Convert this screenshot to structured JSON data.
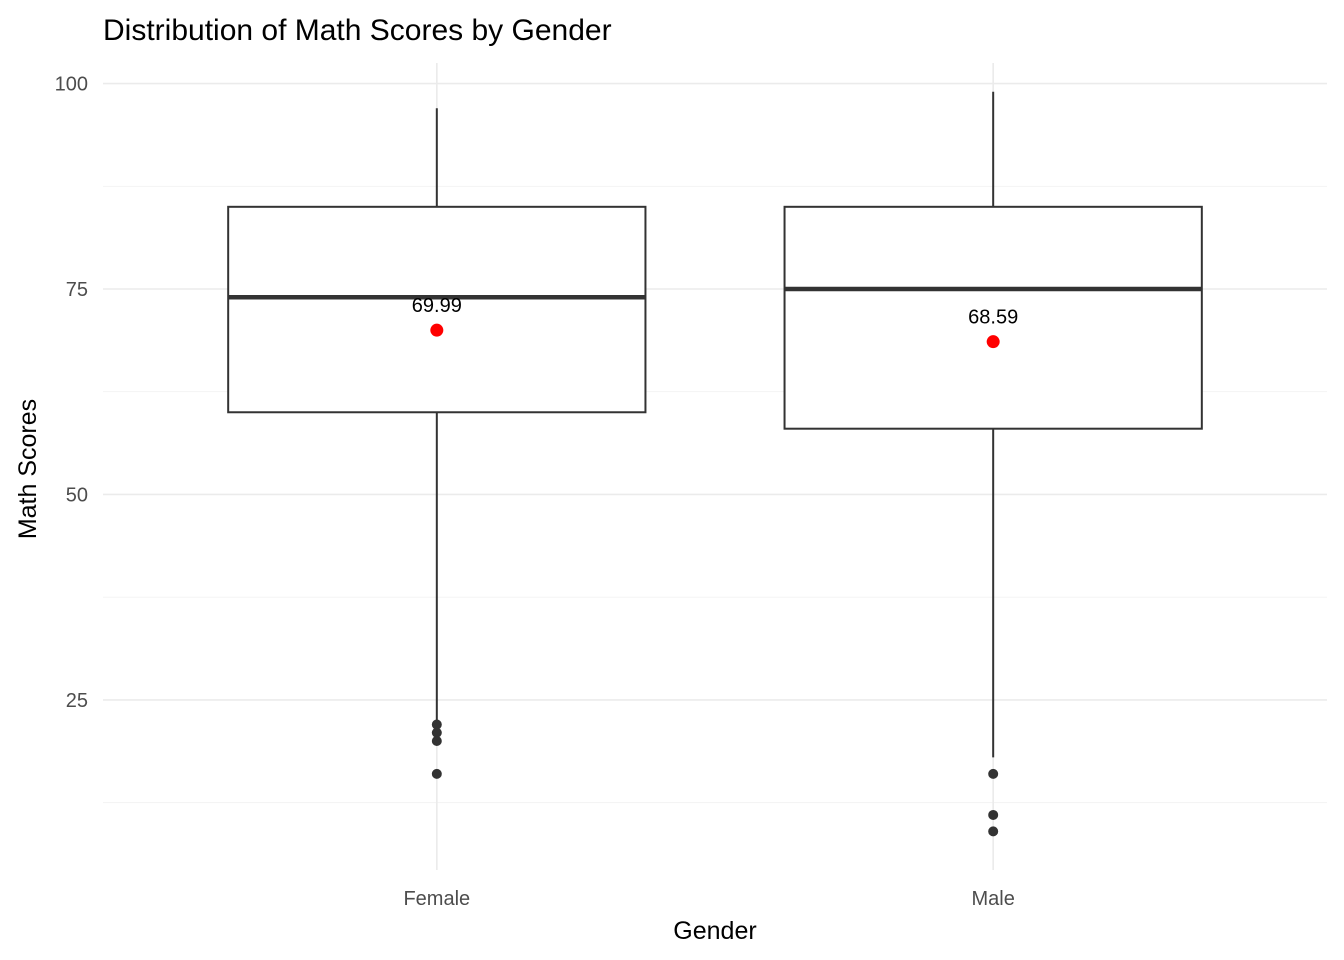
{
  "chart_data": {
    "type": "box",
    "title": "Distribution of Math Scores by Gender",
    "xlabel": "Gender",
    "ylabel": "Math Scores",
    "ylim": [
      4.3,
      102.5
    ],
    "y_ticks": [
      25,
      50,
      75,
      100
    ],
    "y_tick_labels": [
      "25",
      "50",
      "75",
      "100"
    ],
    "grid": true,
    "legend": "none",
    "categories": [
      "Female",
      "Male"
    ],
    "boxes": [
      {
        "category": "Female",
        "whisker_low": 22,
        "q1": 60,
        "median": 74,
        "q3": 85,
        "whisker_high": 97,
        "outliers": [
          22,
          21,
          20,
          16
        ],
        "mean": 69.99,
        "mean_label": "69.99"
      },
      {
        "category": "Male",
        "whisker_low": 18,
        "q1": 58,
        "median": 75,
        "q3": 85,
        "whisker_high": 99,
        "outliers": [
          16,
          11,
          9
        ],
        "mean": 68.59,
        "mean_label": "68.59"
      }
    ],
    "colors": {
      "box_line": "#333333",
      "box_fill": "#ffffff",
      "outlier": "#333333",
      "mean_point": "#ff0000",
      "grid": "#ebebeb"
    }
  }
}
